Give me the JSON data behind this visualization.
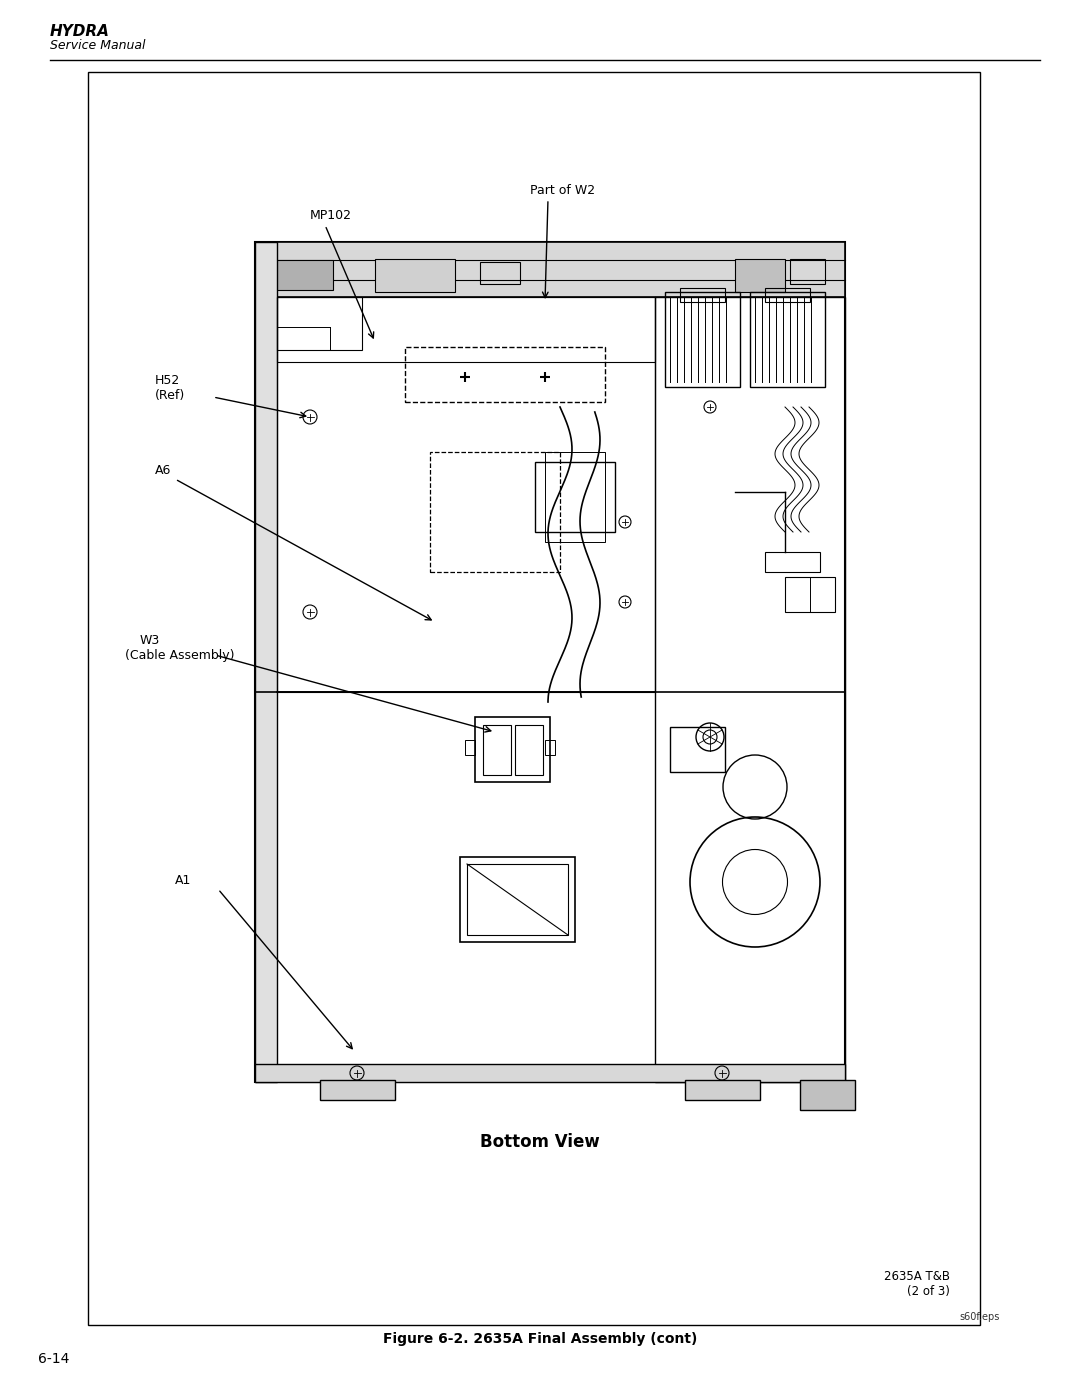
{
  "bg_color": "#ffffff",
  "title_text": "HYDRA",
  "subtitle_text": "Service Manual",
  "page_num": "6-14",
  "figure_caption": "Figure 6-2. 2635A Final Assembly (cont)",
  "bottom_label": "Bottom View",
  "corner_text_line1": "2635A T&B",
  "corner_text_line2": "(2 of 3)",
  "corner_text_line3": "s60f.eps"
}
